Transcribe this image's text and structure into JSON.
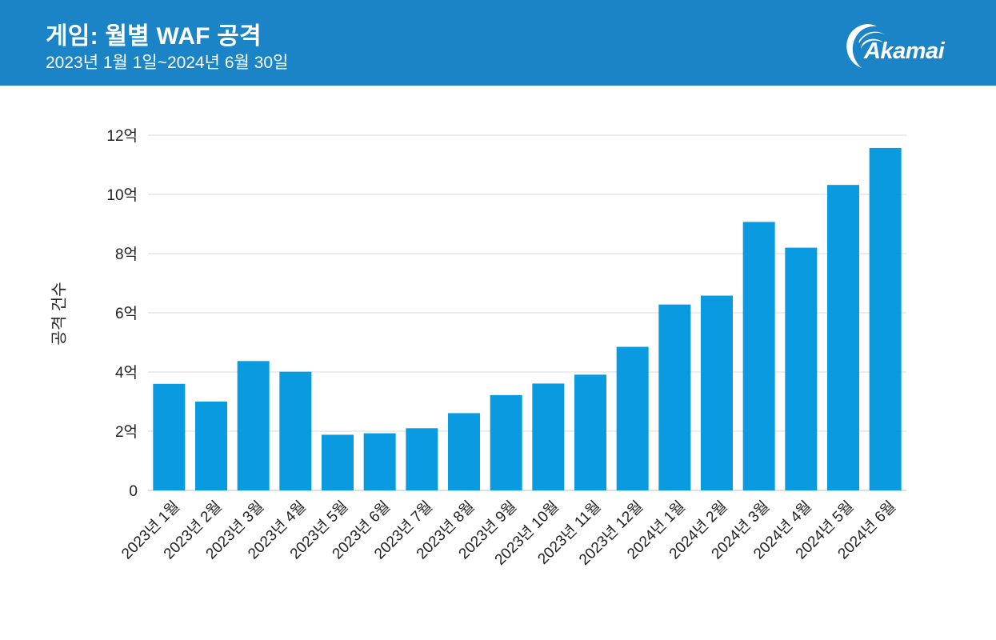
{
  "header": {
    "title": "게임: 월별 WAF 공격",
    "subtitle": "2023년 1월 1일~2024년 6월 30일",
    "logo_text": "Akamai",
    "background_color": "#1a84c6"
  },
  "chart_data": {
    "type": "bar",
    "title": "게임: 월별 WAF 공격",
    "subtitle": "2023년 1월 1일~2024년 6월 30일",
    "xlabel": "",
    "ylabel": "공격 건수",
    "categories": [
      "2023년 1월",
      "2023년 2월",
      "2023년 3월",
      "2023년 4월",
      "2023년 5월",
      "2023년 6월",
      "2023년 7월",
      "2023년 8월",
      "2023년 9월",
      "2023년 10월",
      "2023년 11월",
      "2023년 12월",
      "2024년 1월",
      "2024년 2월",
      "2024년 3월",
      "2024년 4월",
      "2024년 5월",
      "2024년 6월"
    ],
    "values": [
      360000000,
      300000000,
      437000000,
      401000000,
      188000000,
      193000000,
      210000000,
      261000000,
      322000000,
      361000000,
      391000000,
      485000000,
      628000000,
      658000000,
      907000000,
      820000000,
      1032000000,
      1157000000
    ],
    "ylim": [
      0,
      1200000000
    ],
    "yticks": [
      0,
      200000000,
      400000000,
      600000000,
      800000000,
      1000000000,
      1200000000
    ],
    "ytick_labels": [
      "0",
      "2억",
      "4억",
      "6억",
      "8억",
      "10억",
      "12억"
    ],
    "grid": true,
    "bar_color": "#0a9ae0",
    "gridline_color": "#d9d9d9"
  }
}
